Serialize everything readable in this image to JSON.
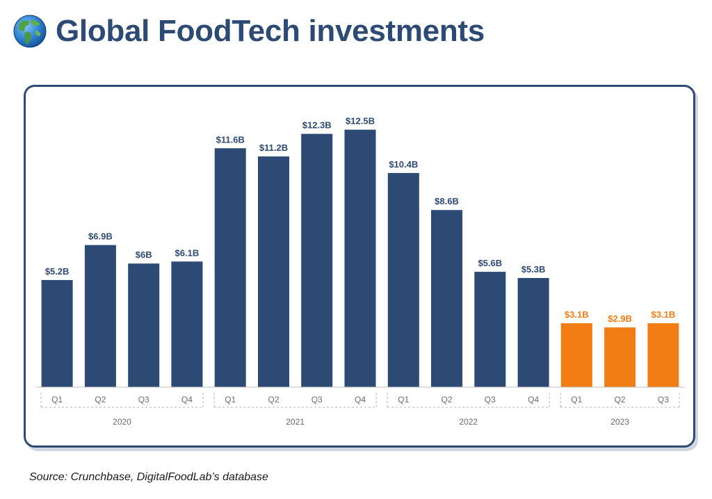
{
  "header": {
    "title": "Global FoodTech investments",
    "icon": "globe-icon"
  },
  "colors": {
    "historical": "#2d4a75",
    "current_year": "#f27d14",
    "title": "#2d4a75",
    "axis_text": "#6b6b6b"
  },
  "chart_data": {
    "type": "bar",
    "title": "",
    "xlabel": "",
    "ylabel": "",
    "ylim": [
      0,
      13.5
    ],
    "grid": false,
    "legend": "none",
    "categories": [
      "Q1",
      "Q2",
      "Q3",
      "Q4",
      "Q1",
      "Q2",
      "Q3",
      "Q4",
      "Q1",
      "Q2",
      "Q3",
      "Q4",
      "Q1",
      "Q2",
      "Q3"
    ],
    "groups": [
      {
        "label": "2020",
        "count": 4
      },
      {
        "label": "2021",
        "count": 4
      },
      {
        "label": "2022",
        "count": 4
      },
      {
        "label": "2023",
        "count": 3
      }
    ],
    "values": [
      5.2,
      6.9,
      6.0,
      6.1,
      11.6,
      11.2,
      12.3,
      12.5,
      10.4,
      8.6,
      5.6,
      5.3,
      3.1,
      2.9,
      3.1
    ],
    "data_labels": [
      "$5.2B",
      "$6.9B",
      "$6B",
      "$6.1B",
      "$11.6B",
      "$11.2B",
      "$12.3B",
      "$12.5B",
      "$10.4B",
      "$8.6B",
      "$5.6B",
      "$5.3B",
      "$3.1B",
      "$2.9B",
      "$3.1B"
    ],
    "highlight_group": "2023"
  },
  "footer": {
    "source": "Source: Crunchbase, DigitalFoodLab’s database"
  }
}
